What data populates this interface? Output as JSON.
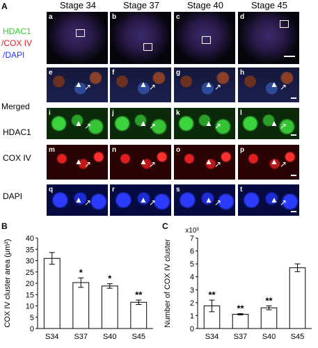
{
  "figure": {
    "panel_A_letter": "A",
    "panel_B_letter": "B",
    "panel_C_letter": "C",
    "stages": [
      "Stage 34",
      "Stage 37",
      "Stage 40",
      "Stage 45"
    ],
    "stain_labels": {
      "hdac1": "HDAC1",
      "cox": "/COX IV",
      "dapi": "/DAPI"
    },
    "row_labels": [
      "Merged",
      "HDAC1",
      "COX IV",
      "DAPI"
    ],
    "panel_letters": [
      [
        "a",
        "b",
        "c",
        "d"
      ],
      [
        "e",
        "f",
        "g",
        "h"
      ],
      [
        "i",
        "j",
        "k",
        "l"
      ],
      [
        "m",
        "n",
        "o",
        "p"
      ],
      [
        "q",
        "r",
        "s",
        "t"
      ]
    ],
    "colors": {
      "hdac1": "#2fd12f",
      "cox": "#e31b1b",
      "dapi": "#2233ff"
    }
  },
  "chart_data": [
    {
      "type": "bar",
      "categories": [
        "S34",
        "S37",
        "S40",
        "S45"
      ],
      "values": [
        31.0,
        20.3,
        18.8,
        11.6
      ],
      "errors": [
        2.6,
        2.1,
        1.0,
        1.0
      ],
      "significance": [
        "",
        "*",
        "*",
        "**"
      ],
      "ylabel": "COX IV  cluster area (μm²)",
      "ylim": [
        0,
        40
      ],
      "yticks": [
        "0",
        "5",
        "10",
        "15",
        "20",
        "25",
        "30",
        "35",
        "40"
      ]
    },
    {
      "type": "bar",
      "categories": [
        "S34",
        "S37",
        "S40",
        "S45"
      ],
      "values": [
        1.75,
        1.1,
        1.6,
        4.7
      ],
      "errors": [
        0.45,
        0.05,
        0.15,
        0.3
      ],
      "significance": [
        "**",
        "**",
        "**",
        ""
      ],
      "ylabel": "Number of COX IV cluster",
      "multiplier": "x10³",
      "ylim": [
        0,
        7
      ],
      "yticks": [
        "0",
        "1",
        "2",
        "3",
        "4",
        "5",
        "6",
        "7"
      ]
    }
  ]
}
